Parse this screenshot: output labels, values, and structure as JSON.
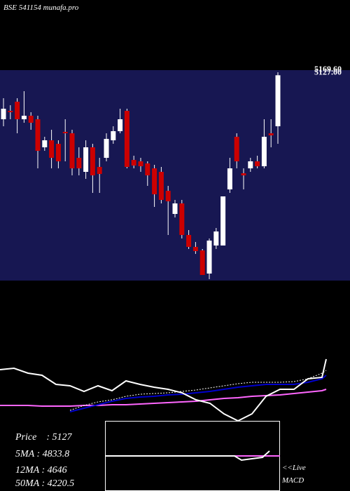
{
  "title": "BSE 541154 munafa.pro",
  "chart_data": [
    {
      "type": "candlestick",
      "up_color": "#ffffff",
      "down_color": "#cc0000",
      "wick_color": "#ffffff",
      "ylim": [
        2200,
        5200
      ],
      "open": [
        4500,
        4620,
        4750,
        4500,
        4550,
        4500,
        4100,
        4200,
        4150,
        4320,
        4300,
        3950,
        3750,
        4100,
        3820,
        3950,
        4200,
        4330,
        4620,
        3920,
        3900,
        3870,
        3800,
        3750,
        3480,
        3150,
        3300,
        2850,
        2680,
        2630,
        2300,
        2700,
        2700,
        3500,
        4250,
        3730,
        3800,
        3900,
        3830,
        4300,
        4400
      ],
      "high": [
        4800,
        4700,
        4800,
        4900,
        4600,
        4550,
        4250,
        4350,
        4200,
        4500,
        4350,
        4100,
        4200,
        4150,
        3950,
        4300,
        4400,
        4650,
        4650,
        3980,
        3950,
        3900,
        3850,
        3820,
        3550,
        3350,
        3350,
        2920,
        2750,
        2650,
        2800,
        2950,
        3400,
        3950,
        4300,
        3800,
        3950,
        3980,
        4500,
        4500,
        5170
      ],
      "low": [
        4400,
        4500,
        4300,
        4450,
        4350,
        3800,
        4050,
        3800,
        3800,
        3900,
        3700,
        3700,
        3650,
        3450,
        3450,
        3900,
        4150,
        4300,
        3800,
        3800,
        3750,
        3550,
        3250,
        3300,
        2850,
        3100,
        2800,
        2650,
        2580,
        2280,
        2220,
        2650,
        2700,
        3450,
        3800,
        3500,
        3750,
        3800,
        3800,
        4100,
        4150
      ],
      "close": [
        4650,
        4600,
        4500,
        4550,
        4450,
        4050,
        4200,
        3950,
        3900,
        4300,
        3800,
        3800,
        4100,
        3700,
        3720,
        4220,
        4330,
        4500,
        3820,
        3840,
        3830,
        3700,
        3430,
        3350,
        3330,
        3300,
        2850,
        2680,
        2620,
        2280,
        2770,
        2900,
        3400,
        3800,
        3900,
        3700,
        3900,
        3830,
        4250,
        4270,
        5127
      ],
      "price_labels": [
        {
          "value": 5169.6,
          "label": "5169.60"
        },
        {
          "value": 5127,
          "label": "5127.00"
        }
      ]
    },
    {
      "type": "line",
      "xlim": [
        0,
        500
      ],
      "ylim": [
        0,
        100
      ],
      "x": [
        0,
        20,
        40,
        60,
        80,
        100,
        120,
        140,
        160,
        180,
        200,
        220,
        240,
        260,
        280,
        300,
        320,
        340,
        360,
        380,
        400,
        420,
        440,
        460,
        466
      ],
      "series": [
        {
          "color": "#ff66ff",
          "dash": false,
          "values": [
            22,
            22,
            22,
            21,
            21,
            21,
            22,
            22,
            23,
            23,
            24,
            25,
            26,
            27,
            28,
            30,
            32,
            33,
            35,
            36,
            37,
            39,
            41,
            43,
            45
          ]
        },
        {
          "color": "#ffffff",
          "dash": true,
          "values": [
            null,
            null,
            null,
            null,
            null,
            15,
            22,
            27,
            30,
            35,
            38,
            39,
            40,
            42,
            44,
            47,
            50,
            53,
            55,
            55,
            55,
            56,
            60,
            68,
            72
          ]
        },
        {
          "color": "#0000cc",
          "dash": false,
          "values": [
            null,
            null,
            null,
            null,
            null,
            13,
            18,
            23,
            28,
            32,
            34,
            35,
            37,
            38,
            40,
            42,
            45,
            48,
            50,
            52,
            52,
            52,
            55,
            60,
            65
          ]
        },
        {
          "color": "#ffffff",
          "dash": false,
          "values": [
            73,
            75,
            68,
            65,
            52,
            50,
            42,
            50,
            43,
            57,
            52,
            48,
            45,
            40,
            30,
            25,
            10,
            0,
            10,
            35,
            45,
            45,
            60,
            62,
            88
          ]
        }
      ]
    },
    {
      "type": "line",
      "xlim": [
        150,
        400
      ],
      "ylim": [
        -50,
        50
      ],
      "x": [
        150,
        200,
        250,
        300,
        335,
        345,
        360,
        375,
        385,
        400
      ],
      "series": [
        {
          "color": "#ff66ff",
          "dash": false,
          "values": [
            0,
            0,
            0,
            0,
            0,
            0,
            0,
            0,
            0,
            0
          ]
        },
        {
          "color": "#ffffff",
          "dash": false,
          "values": [
            0,
            0,
            0,
            0,
            0,
            -6,
            -4,
            -2,
            7,
            null
          ]
        }
      ]
    }
  ],
  "stats": [
    "Price    : 5127",
    "5MA : 4833.8",
    "12MA : 4646",
    "50MA : 4220.5"
  ],
  "macd_label": {
    "live": "<<Live",
    "name": "MACD"
  }
}
